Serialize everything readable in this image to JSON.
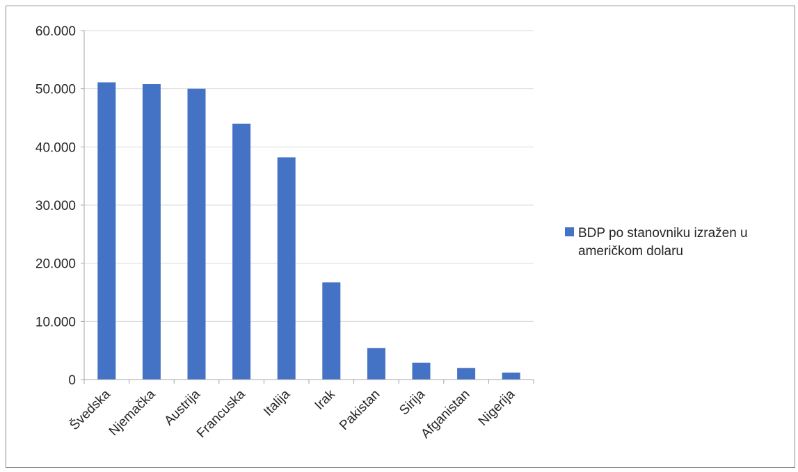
{
  "chart_data": {
    "type": "bar",
    "categories": [
      "Švedska",
      "Njemačka",
      "Austrija",
      "Francuska",
      "Italija",
      "Irak",
      "Pakistan",
      "Sirija",
      "Afganistan",
      "Nigerija"
    ],
    "series": [
      {
        "name": "BDP po stanovniku izražen u američkom dolaru",
        "legend_lines": [
          "BDP po stanovniku izražen u",
          "američkom dolaru"
        ],
        "values": [
          51100,
          50800,
          50000,
          44000,
          38200,
          16700,
          5400,
          2900,
          2000,
          1200
        ],
        "color": "#4472c4"
      }
    ],
    "ylim": [
      0,
      60000
    ],
    "y_ticks": [
      {
        "value": 0,
        "label": "0"
      },
      {
        "value": 10000,
        "label": "10.000"
      },
      {
        "value": 20000,
        "label": "20.000"
      },
      {
        "value": 30000,
        "label": "30.000"
      },
      {
        "value": 40000,
        "label": "40.000"
      },
      {
        "value": 50000,
        "label": "50.000"
      },
      {
        "value": 60000,
        "label": "60.000"
      }
    ],
    "grid": true,
    "legend_position": "right",
    "title": "",
    "xlabel": "",
    "ylabel": "",
    "gridline_color": "#d9d9d9",
    "axis_color": "#a6a6a6"
  }
}
